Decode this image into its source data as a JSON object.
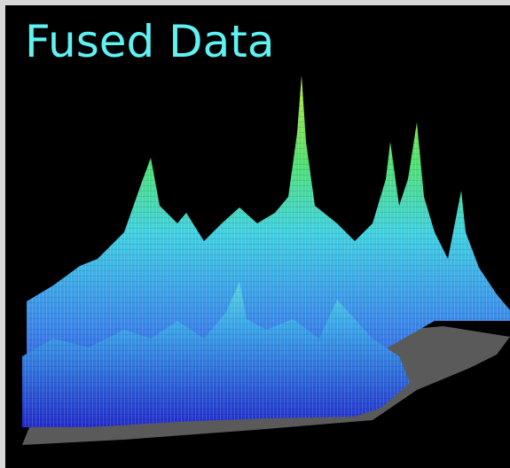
{
  "title": "Fused Data"
}
